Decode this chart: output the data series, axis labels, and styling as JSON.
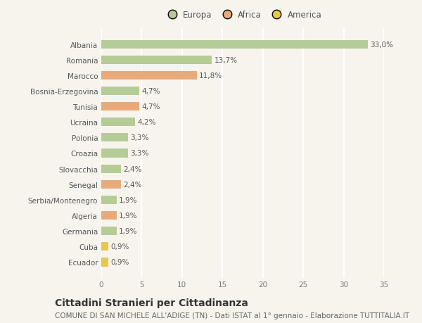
{
  "categories": [
    "Albania",
    "Romania",
    "Marocco",
    "Bosnia-Erzegovina",
    "Tunisia",
    "Ucraina",
    "Polonia",
    "Croazia",
    "Slovacchia",
    "Senegal",
    "Serbia/Montenegro",
    "Algeria",
    "Germania",
    "Cuba",
    "Ecuador"
  ],
  "values": [
    33.0,
    13.7,
    11.8,
    4.7,
    4.7,
    4.2,
    3.3,
    3.3,
    2.4,
    2.4,
    1.9,
    1.9,
    1.9,
    0.9,
    0.9
  ],
  "labels": [
    "33,0%",
    "13,7%",
    "11,8%",
    "4,7%",
    "4,7%",
    "4,2%",
    "3,3%",
    "3,3%",
    "2,4%",
    "2,4%",
    "1,9%",
    "1,9%",
    "1,9%",
    "0,9%",
    "0,9%"
  ],
  "colors": [
    "#b5cc96",
    "#b5cc96",
    "#e8aa7a",
    "#b5cc96",
    "#e8aa7a",
    "#b5cc96",
    "#b5cc96",
    "#b5cc96",
    "#b5cc96",
    "#e8aa7a",
    "#b5cc96",
    "#e8aa7a",
    "#b5cc96",
    "#e8c84a",
    "#e8c84a"
  ],
  "legend_labels": [
    "Europa",
    "Africa",
    "America"
  ],
  "legend_colors": [
    "#b5cc96",
    "#e8aa7a",
    "#e8c84a"
  ],
  "title": "Cittadini Stranieri per Cittadinanza",
  "subtitle": "COMUNE DI SAN MICHELE ALL'ADIGE (TN) - Dati ISTAT al 1° gennaio - Elaborazione TUTTITALIA.IT",
  "xlim": [
    0,
    35
  ],
  "xticks": [
    0,
    5,
    10,
    15,
    20,
    25,
    30,
    35
  ],
  "background_color": "#f7f4ee",
  "grid_color": "#ffffff",
  "bar_height": 0.55,
  "title_fontsize": 10,
  "subtitle_fontsize": 7.5,
  "tick_fontsize": 7.5,
  "label_fontsize": 7.5,
  "legend_fontsize": 8.5
}
